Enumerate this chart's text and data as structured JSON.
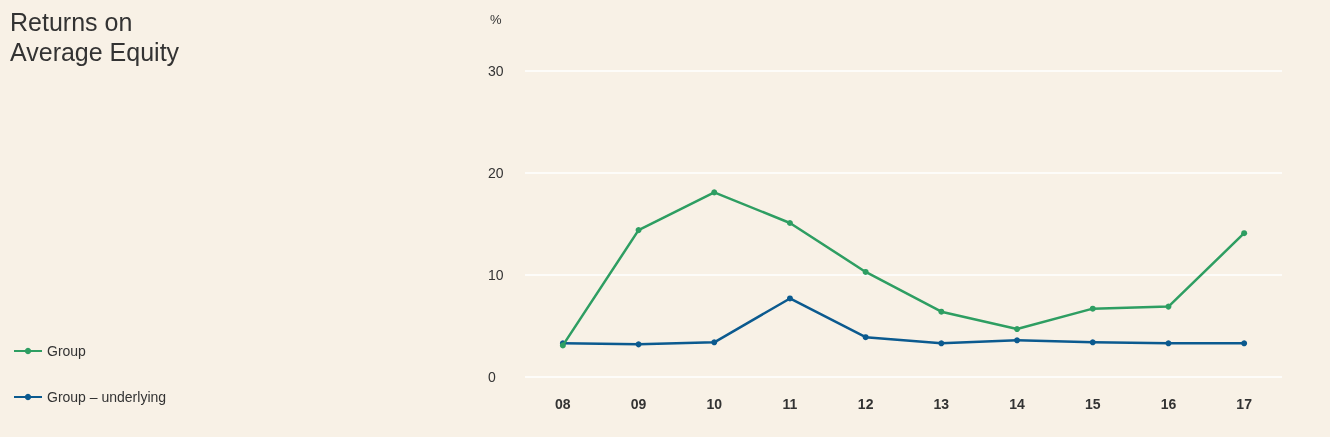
{
  "chart_data": {
    "type": "line",
    "title": "Returns on\nAverage Equity",
    "ylabel": "%",
    "categories": [
      "08",
      "09",
      "10",
      "11",
      "12",
      "13",
      "14",
      "15",
      "16",
      "17"
    ],
    "series": [
      {
        "name": "Group",
        "color": "#2e9e62",
        "values": [
          3.1,
          14.4,
          18.1,
          15.1,
          10.3,
          6.4,
          4.7,
          6.7,
          6.9,
          14.1
        ]
      },
      {
        "name": "Group – underlying",
        "color": "#0b5a8f",
        "values": [
          3.3,
          3.2,
          3.4,
          7.7,
          3.9,
          3.3,
          3.6,
          3.4,
          3.3,
          3.3
        ]
      }
    ],
    "ylim": [
      0,
      30
    ],
    "yticks": [
      0,
      10,
      20,
      30
    ],
    "grid": "y",
    "legend": "left",
    "marker": "circle",
    "line_style": "solid"
  }
}
